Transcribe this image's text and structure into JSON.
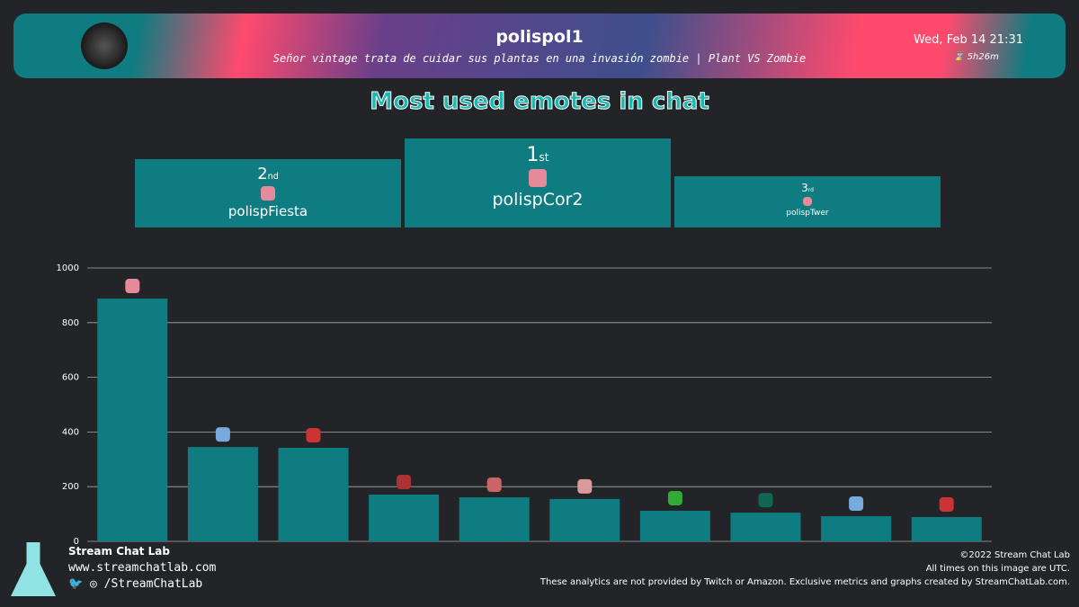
{
  "header": {
    "channel": "polispol1",
    "stream_title": "Señor vintage trata de cuidar sus plantas en una invasión zombie | Plant VS Zombie",
    "date": "Wed, Feb 14 21:31",
    "duration": "5h26m"
  },
  "podium": [
    {
      "rank": "2",
      "suffix": "nd",
      "name": "polispFiesta"
    },
    {
      "rank": "1",
      "suffix": "st",
      "name": "polispCor2"
    },
    {
      "rank": "3",
      "suffix": "rd",
      "name": "polispTwer"
    }
  ],
  "chart_data": {
    "type": "bar",
    "title": "Most used emotes in chat",
    "values": [
      888,
      345,
      342,
      171,
      161,
      155,
      112,
      105,
      92,
      89
    ],
    "color": "#0e7c80",
    "ylim": [
      0,
      1000
    ],
    "yticks": [
      0,
      200,
      400,
      600,
      800,
      1000
    ],
    "grid": true
  },
  "footer": {
    "brand": "Stream Chat Lab",
    "site": "www.streamchatlab.com",
    "social": "/StreamChatLab",
    "copyright": "©2022 Stream Chat Lab",
    "timezone": "All times on this image are UTC.",
    "disclaimer": "These analytics are not provided by Twitch or Amazon. Exclusive metrics and graphs created by StreamChatLab.com."
  }
}
